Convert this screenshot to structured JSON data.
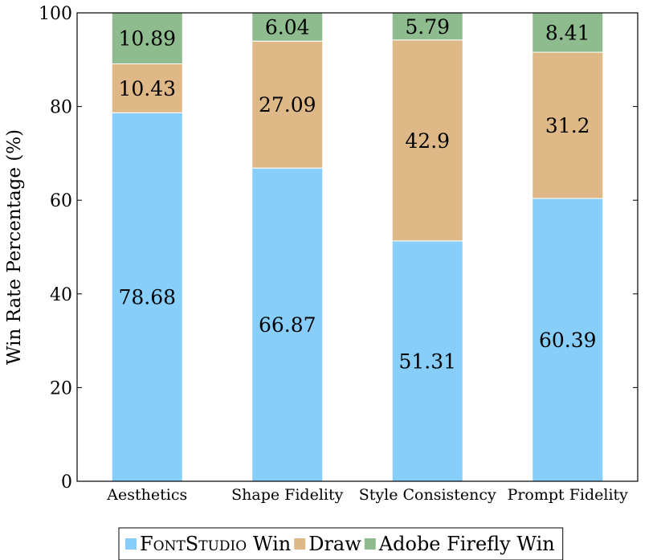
{
  "chart_data": {
    "type": "bar",
    "stacked": true,
    "title": "",
    "xlabel": "",
    "ylabel": "Win Rate Percentage (%)",
    "ylim": [
      0,
      100
    ],
    "yticks": [
      0,
      20,
      40,
      60,
      80,
      100
    ],
    "grid": false,
    "legend_position": "bottom",
    "categories": [
      "Aesthetics",
      "Shape Fidelity",
      "Style Consistency",
      "Prompt Fidelity"
    ],
    "series": [
      {
        "name": "FontStudio Win",
        "name_smallcaps": "FontStudio",
        "name_suffix": " Win",
        "color": "#87CEFA",
        "values": [
          78.68,
          66.87,
          51.31,
          60.39
        ]
      },
      {
        "name": "Draw",
        "color": "#DEB887",
        "values": [
          10.43,
          27.09,
          42.9,
          31.2
        ]
      },
      {
        "name": "Adobe Firefly Win",
        "color": "#8FBC8F",
        "values": [
          10.89,
          6.04,
          5.79,
          8.41
        ]
      }
    ]
  }
}
